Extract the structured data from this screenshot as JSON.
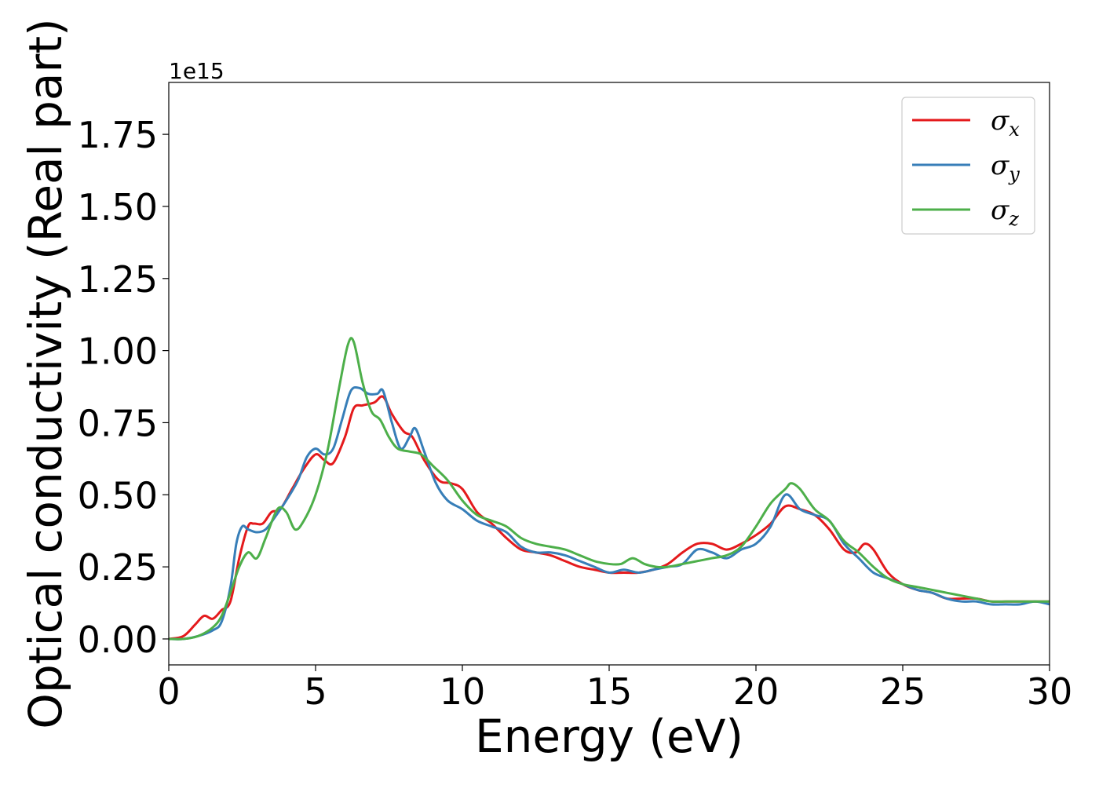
{
  "chart_data": {
    "type": "line",
    "title": "",
    "xlabel": "Energy (eV)",
    "ylabel": "Optical conductivity (Real part)",
    "y_offset_text": "1e15",
    "xlim": [
      0,
      30
    ],
    "ylim": [
      -0.09,
      1.93
    ],
    "x_ticks": [
      0,
      5,
      10,
      15,
      20,
      25,
      30
    ],
    "x_tick_labels": [
      "0",
      "5",
      "10",
      "15",
      "20",
      "25",
      "30"
    ],
    "y_ticks": [
      0.0,
      0.25,
      0.5,
      0.75,
      1.0,
      1.25,
      1.5,
      1.75
    ],
    "y_tick_labels": [
      "0.00",
      "0.25",
      "0.50",
      "0.75",
      "1.00",
      "1.25",
      "1.50",
      "1.75"
    ],
    "grid": false,
    "legend_position": "top-right",
    "series": [
      {
        "name": "σx",
        "symbol": "σ",
        "subscript": "x",
        "color": "#e41a1c",
        "x": [
          0,
          0.5,
          0.9,
          1.2,
          1.5,
          1.8,
          2.1,
          2.4,
          2.7,
          2.9,
          3.2,
          3.5,
          3.8,
          4.2,
          4.6,
          5.0,
          5.3,
          5.6,
          6.0,
          6.3,
          6.6,
          7.0,
          7.3,
          7.6,
          8.0,
          8.3,
          8.7,
          9.2,
          9.6,
          10.0,
          10.5,
          11.0,
          11.5,
          12.0,
          12.5,
          13.0,
          13.5,
          14.0,
          14.5,
          15.0,
          15.5,
          16.0,
          16.5,
          17.0,
          17.5,
          18.0,
          18.5,
          19.0,
          19.5,
          20.0,
          20.5,
          21.0,
          21.5,
          22.0,
          22.5,
          23.0,
          23.4,
          23.7,
          24.0,
          24.5,
          25.0,
          25.5,
          26.0,
          26.5,
          27.0,
          27.5,
          28.0,
          28.5,
          29.0,
          29.5,
          30.0
        ],
        "y": [
          0.0,
          0.01,
          0.05,
          0.08,
          0.07,
          0.1,
          0.13,
          0.28,
          0.39,
          0.4,
          0.4,
          0.44,
          0.45,
          0.52,
          0.59,
          0.64,
          0.62,
          0.61,
          0.7,
          0.8,
          0.81,
          0.82,
          0.84,
          0.78,
          0.72,
          0.7,
          0.62,
          0.55,
          0.54,
          0.52,
          0.44,
          0.4,
          0.35,
          0.31,
          0.3,
          0.29,
          0.27,
          0.25,
          0.24,
          0.23,
          0.23,
          0.23,
          0.24,
          0.26,
          0.3,
          0.33,
          0.33,
          0.31,
          0.33,
          0.36,
          0.4,
          0.46,
          0.45,
          0.43,
          0.38,
          0.31,
          0.3,
          0.33,
          0.31,
          0.23,
          0.19,
          0.17,
          0.16,
          0.14,
          0.14,
          0.14,
          0.13,
          0.13,
          0.13,
          0.13,
          0.13
        ]
      },
      {
        "name": "σy",
        "symbol": "σ",
        "subscript": "y",
        "color": "#377eb8",
        "x": [
          0,
          0.5,
          1.0,
          1.5,
          1.8,
          2.1,
          2.3,
          2.5,
          2.7,
          3.0,
          3.3,
          3.6,
          4.0,
          4.4,
          4.7,
          5.0,
          5.3,
          5.6,
          5.9,
          6.2,
          6.5,
          6.8,
          7.1,
          7.3,
          7.6,
          7.9,
          8.2,
          8.4,
          8.7,
          9.1,
          9.5,
          10.0,
          10.5,
          11.0,
          11.5,
          12.0,
          12.5,
          13.0,
          13.5,
          14.0,
          14.5,
          15.0,
          15.5,
          16.0,
          16.5,
          17.0,
          17.5,
          18.0,
          18.5,
          19.0,
          19.5,
          20.0,
          20.5,
          21.0,
          21.5,
          22.0,
          22.5,
          23.0,
          23.5,
          24.0,
          24.5,
          25.0,
          25.5,
          26.0,
          26.5,
          27.0,
          27.5,
          28.0,
          28.5,
          29.0,
          29.5,
          30.0
        ],
        "y": [
          0.0,
          0.0,
          0.01,
          0.03,
          0.06,
          0.18,
          0.33,
          0.39,
          0.38,
          0.37,
          0.38,
          0.42,
          0.48,
          0.55,
          0.63,
          0.66,
          0.64,
          0.66,
          0.76,
          0.86,
          0.87,
          0.85,
          0.85,
          0.86,
          0.75,
          0.66,
          0.7,
          0.73,
          0.65,
          0.54,
          0.48,
          0.45,
          0.41,
          0.39,
          0.37,
          0.32,
          0.3,
          0.3,
          0.29,
          0.27,
          0.25,
          0.23,
          0.24,
          0.23,
          0.24,
          0.25,
          0.26,
          0.31,
          0.3,
          0.28,
          0.31,
          0.33,
          0.39,
          0.5,
          0.45,
          0.43,
          0.41,
          0.33,
          0.28,
          0.23,
          0.21,
          0.19,
          0.17,
          0.16,
          0.14,
          0.13,
          0.13,
          0.12,
          0.12,
          0.12,
          0.13,
          0.12
        ]
      },
      {
        "name": "σz",
        "symbol": "σ",
        "subscript": "z",
        "color": "#4daf4a",
        "x": [
          0,
          0.5,
          1.0,
          1.5,
          1.8,
          2.1,
          2.4,
          2.7,
          3.0,
          3.3,
          3.7,
          4.0,
          4.3,
          4.6,
          5.0,
          5.4,
          5.8,
          6.1,
          6.3,
          6.6,
          6.9,
          7.2,
          7.5,
          7.8,
          8.2,
          8.6,
          9.0,
          9.5,
          10.0,
          10.5,
          11.0,
          11.5,
          12.0,
          12.5,
          13.0,
          13.5,
          14.0,
          14.5,
          15.0,
          15.4,
          15.8,
          16.2,
          16.6,
          17.0,
          17.5,
          18.0,
          18.5,
          19.0,
          19.5,
          20.0,
          20.5,
          21.0,
          21.2,
          21.5,
          22.0,
          22.5,
          23.0,
          23.5,
          24.0,
          24.5,
          25.0,
          25.5,
          26.0,
          26.5,
          27.0,
          27.5,
          28.0,
          28.5,
          29.0,
          29.5,
          30.0
        ],
        "y": [
          0.0,
          0.0,
          0.01,
          0.04,
          0.08,
          0.16,
          0.25,
          0.3,
          0.28,
          0.35,
          0.45,
          0.44,
          0.38,
          0.41,
          0.5,
          0.65,
          0.87,
          1.02,
          1.03,
          0.89,
          0.79,
          0.76,
          0.7,
          0.66,
          0.65,
          0.64,
          0.6,
          0.55,
          0.48,
          0.43,
          0.41,
          0.39,
          0.35,
          0.33,
          0.32,
          0.31,
          0.29,
          0.27,
          0.26,
          0.26,
          0.28,
          0.26,
          0.25,
          0.25,
          0.26,
          0.27,
          0.28,
          0.29,
          0.32,
          0.39,
          0.47,
          0.52,
          0.54,
          0.52,
          0.45,
          0.41,
          0.34,
          0.3,
          0.25,
          0.21,
          0.19,
          0.18,
          0.17,
          0.16,
          0.15,
          0.14,
          0.13,
          0.13,
          0.13,
          0.13,
          0.13
        ]
      }
    ]
  }
}
